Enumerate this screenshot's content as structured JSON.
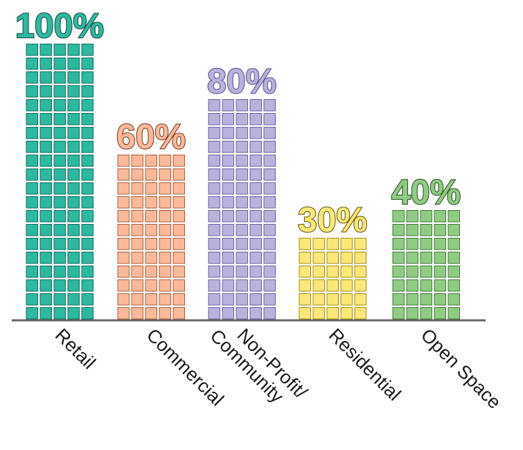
{
  "chart_data": {
    "type": "bar",
    "categories": [
      [
        "Retail"
      ],
      [
        "Commercial"
      ],
      [
        "Non-Profit/",
        "Community"
      ],
      [
        "Residential"
      ],
      [
        "Open Space"
      ]
    ],
    "values": [
      100,
      60,
      80,
      30,
      40
    ],
    "value_labels": [
      "100%",
      "60%",
      "80%",
      "30%",
      "40%"
    ],
    "unit": "%",
    "ylim": [
      0,
      100
    ],
    "grid": false,
    "legend": "none",
    "colors": {
      "fill": [
        "#2db8a0",
        "#f9b99a",
        "#b8b2dc",
        "#fae77a",
        "#8fcb82"
      ],
      "stroke": [
        "#0f6e5e",
        "#b25a35",
        "#6a61a3",
        "#a38b0e",
        "#3d7a32"
      ],
      "label_fill": [
        "#2db8a0",
        "#f9b99a",
        "#b8b2dc",
        "#fae77a",
        "#8fcb82"
      ],
      "label_stroke": [
        "#1c4f45",
        "#7a3f26",
        "#5d578c",
        "#6e5d08",
        "#2d5426"
      ],
      "axis": "#666666"
    }
  }
}
